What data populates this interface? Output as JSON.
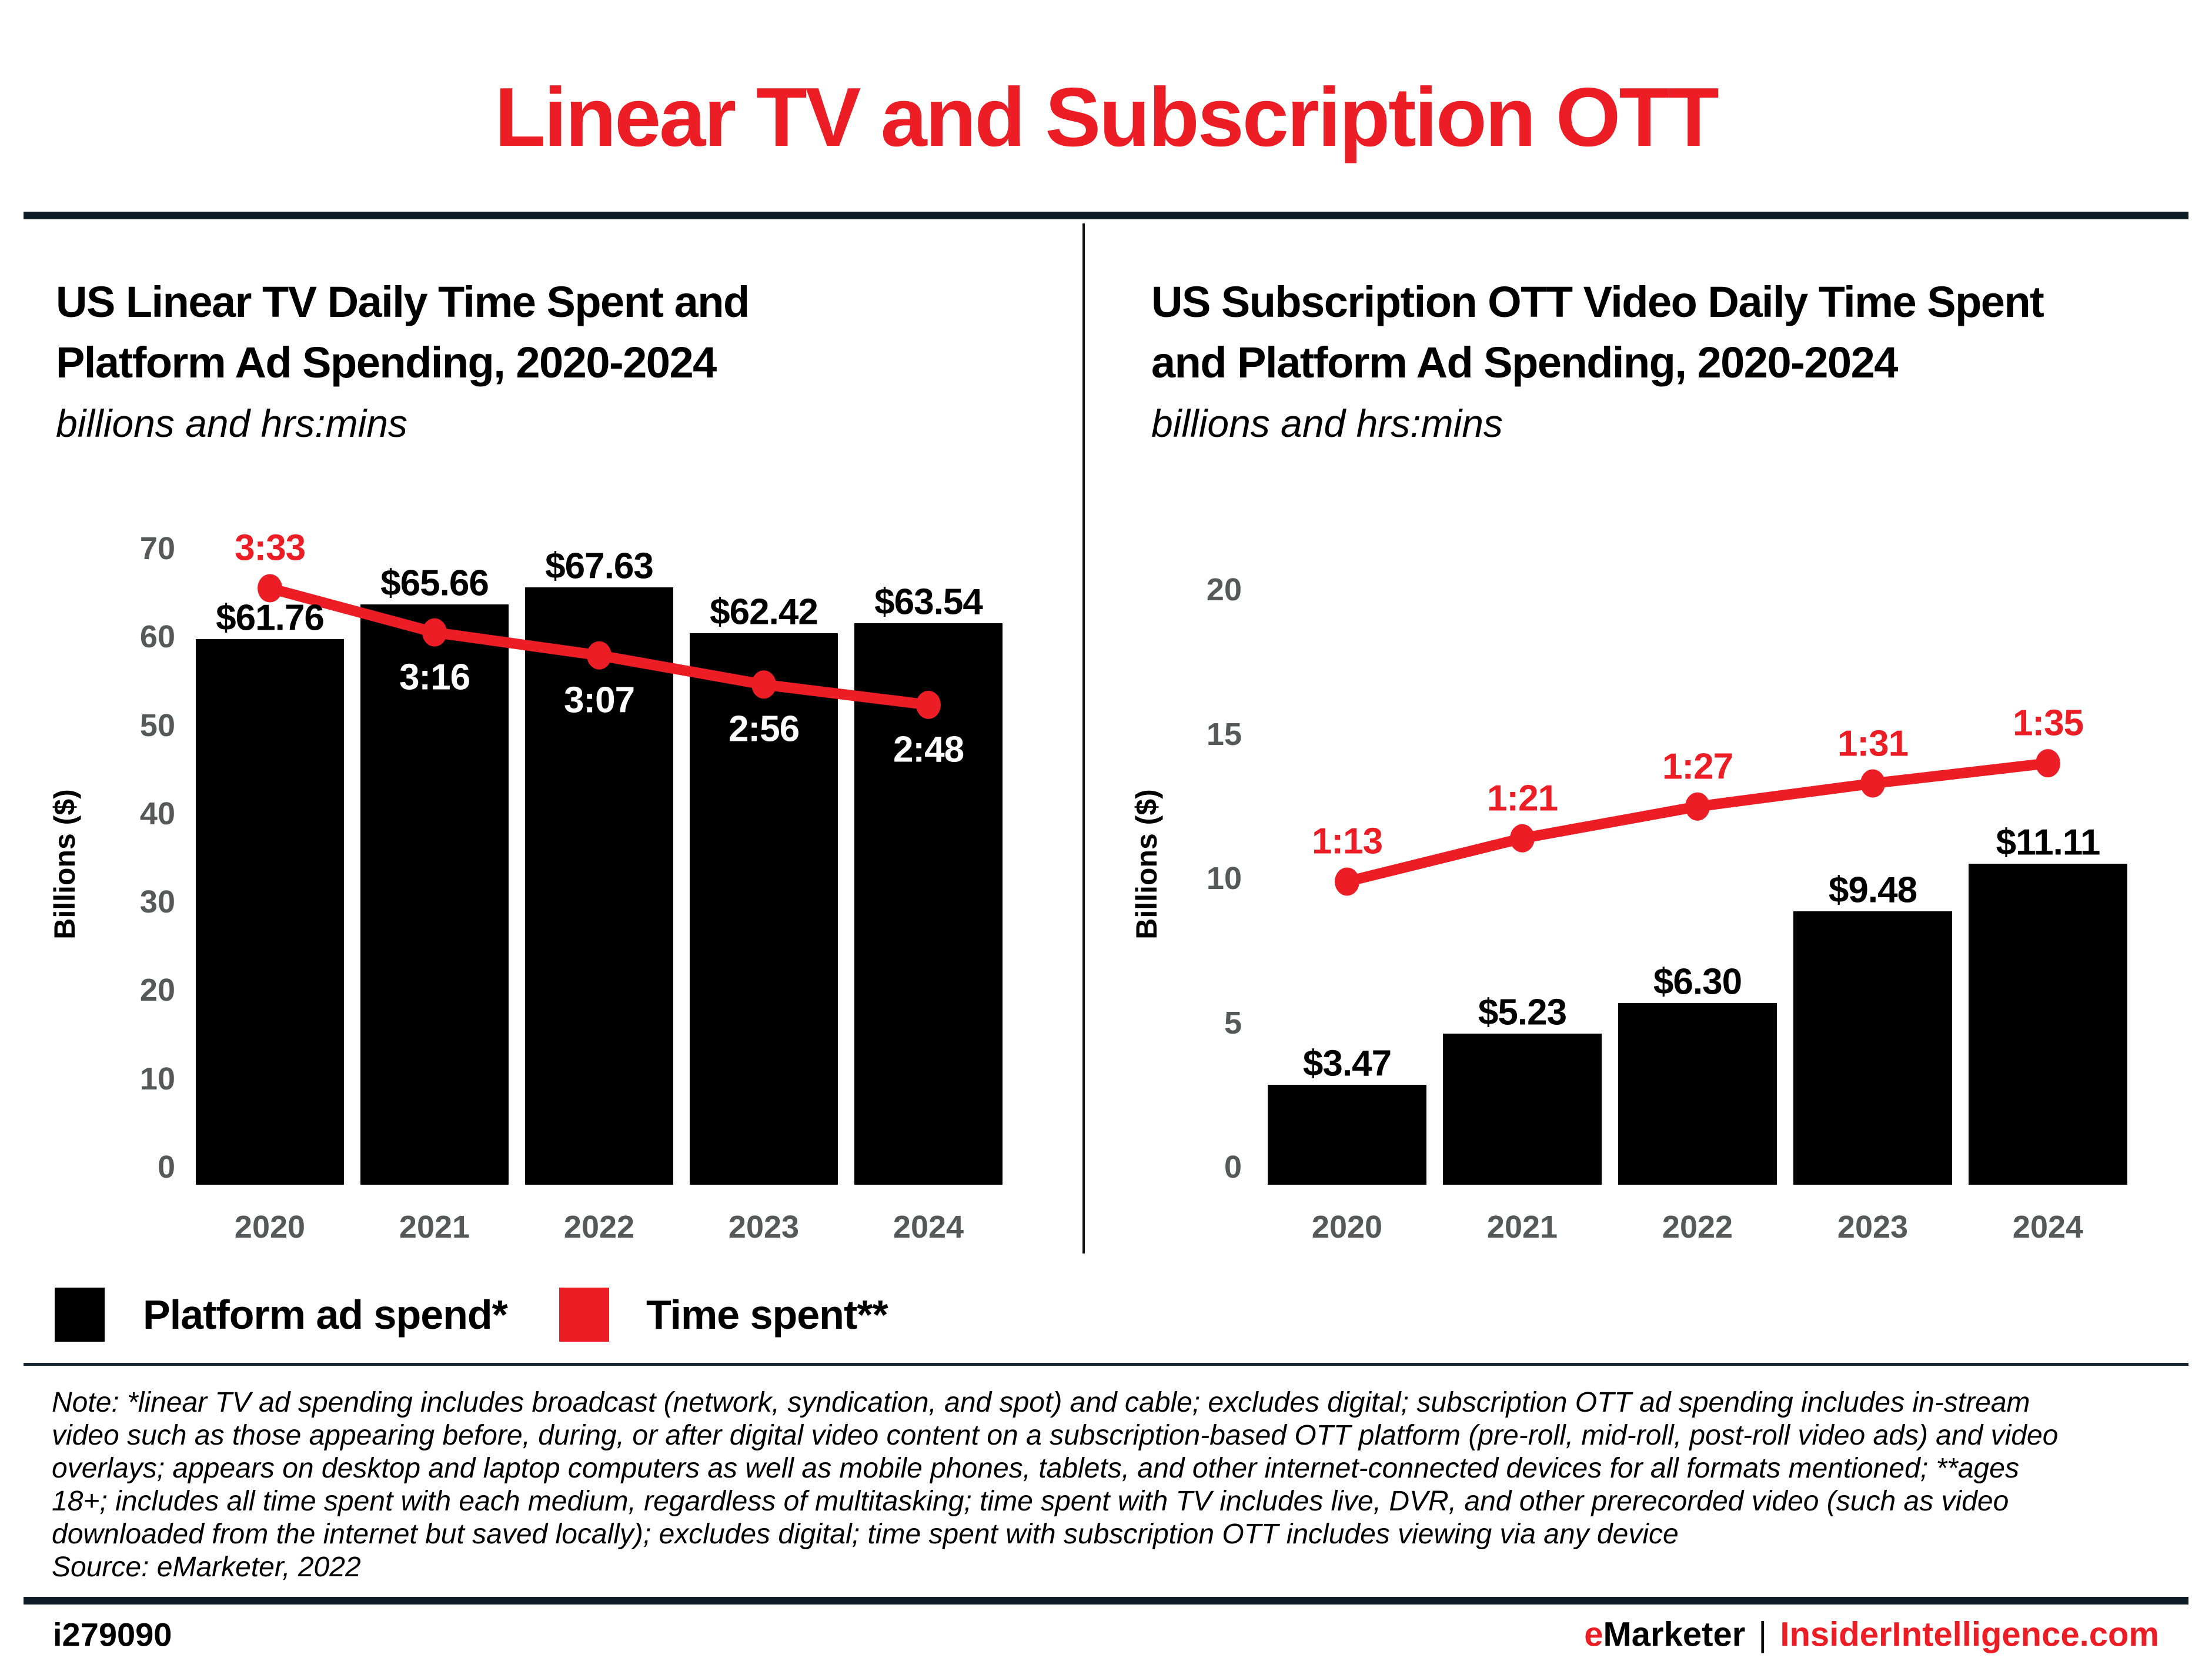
{
  "header": {
    "title": "Linear TV and Subscription OTT"
  },
  "colors": {
    "accent_red": "#EC1D24",
    "bar_black": "#000000",
    "tick_gray": "#57585A",
    "rule_dark": "#0E1C26",
    "white_label": "#FFFFFF"
  },
  "legend": {
    "items": [
      {
        "label": "Platform ad spend*",
        "color": "#000000"
      },
      {
        "label": "Time spent**",
        "color": "#EC1D24"
      }
    ]
  },
  "note": {
    "lines": [
      "Note: *linear TV ad spending includes broadcast (network, syndication, and spot) and cable; excludes digital; subscription OTT ad spending includes in-stream",
      "video such as those appearing before, during, or after digital video content on a subscription-based OTT platform (pre-roll, mid-roll, post-roll video ads) and video",
      "overlays; appears on desktop and laptop computers as well as mobile phones, tablets, and other internet-connected devices for all formats mentioned; **ages",
      "18+; includes all time spent with each medium, regardless of multitasking; time spent with TV includes live, DVR, and other prerecorded video (such as video",
      "downloaded from the internet but saved locally); excludes digital; time spent with subscription OTT includes viewing via any device",
      "Source: eMarketer, 2022"
    ]
  },
  "footer": {
    "id": "i279090",
    "brand_e": "e",
    "brand_rest": "Marketer",
    "separator": "|",
    "site": "InsiderIntelligence.com"
  },
  "chart_data": [
    {
      "type": "bar",
      "title": "US Linear TV Daily Time Spent and Platform Ad Spending, 2020-2024",
      "title_lines": [
        "US Linear TV Daily Time Spent and",
        "Platform Ad Spending, 2020-2024"
      ],
      "subtitle": "billions and hrs:mins",
      "ylabel": "Billions ($)",
      "categories": [
        "2020",
        "2021",
        "2022",
        "2023",
        "2024"
      ],
      "ylim": [
        0,
        70
      ],
      "yticks": [
        0,
        10,
        20,
        30,
        40,
        50,
        60,
        70
      ],
      "grid": false,
      "legend_position": "bottom",
      "series": [
        {
          "name": "Platform ad spend*",
          "type": "bar",
          "values": [
            61.76,
            65.66,
            67.63,
            62.42,
            63.54
          ],
          "labels": [
            "$61.76",
            "$65.66",
            "$67.63",
            "$62.42",
            "$63.54"
          ]
        },
        {
          "name": "Time spent**",
          "type": "line",
          "labels": [
            "3:33",
            "3:16",
            "3:07",
            "2:56",
            "2:48"
          ],
          "minutes": [
            213,
            196,
            187,
            176,
            168
          ],
          "plot_values_dollar_axis": [
            67.5,
            62.5,
            59.9,
            56.6,
            54.3
          ],
          "label_styles": [
            "red-above",
            "white-below",
            "white-below",
            "white-below",
            "white-below"
          ]
        }
      ]
    },
    {
      "type": "bar",
      "title": "US Subscription OTT Video Daily Time Spent and Platform Ad Spending, 2020-2024",
      "title_lines": [
        "US Subscription OTT Video Daily Time Spent",
        "and Platform Ad Spending, 2020-2024"
      ],
      "subtitle": "billions and hrs:mins",
      "ylabel": "Billions ($)",
      "categories": [
        "2020",
        "2021",
        "2022",
        "2023",
        "2024"
      ],
      "ylim": [
        0,
        20
      ],
      "yticks": [
        0,
        5,
        10,
        15,
        20
      ],
      "grid": false,
      "legend_position": "bottom",
      "series": [
        {
          "name": "Platform ad spend*",
          "type": "bar",
          "values": [
            3.47,
            5.23,
            6.3,
            9.48,
            11.11
          ],
          "labels": [
            "$3.47",
            "$5.23",
            "$6.30",
            "$9.48",
            "$11.11"
          ]
        },
        {
          "name": "Time spent**",
          "type": "line",
          "labels": [
            "1:13",
            "1:21",
            "1:27",
            "1:31",
            "1:35"
          ],
          "minutes": [
            73,
            81,
            87,
            91,
            95
          ],
          "plot_values_dollar_axis": [
            10.5,
            12.0,
            13.1,
            13.9,
            14.6
          ],
          "label_styles": [
            "red-above",
            "red-above",
            "red-above",
            "red-above",
            "red-above"
          ]
        }
      ]
    }
  ]
}
